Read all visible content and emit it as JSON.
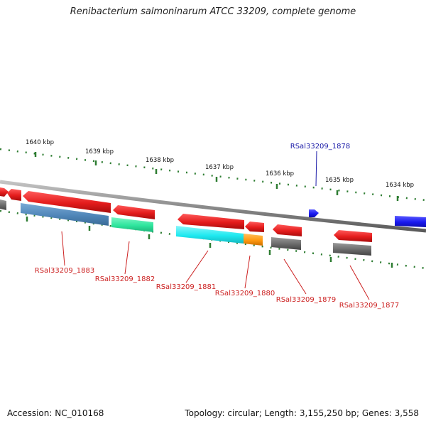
{
  "title": "Renibacterium salmoninarum ATCC 33209, complete genome",
  "footer": {
    "accession": "Accession: NC_010168",
    "summary": "Topology: circular; Length: 3,155,250 bp; Genes: 3,558"
  },
  "colors": {
    "backbone": "#8c8c8c",
    "tick": "#2e7d32",
    "gene_label_red": "#cc2020",
    "gene_label_blue": "#1a1aa8",
    "cds": "#e41c1c",
    "gene_gray": "#6a6a6a",
    "steelblue": "#4f86b8",
    "teal": "#2ee59d",
    "cyan": "#1ee9f0",
    "orange": "#ff9910",
    "blue": "#1a1af0"
  },
  "scale": {
    "unit": "kbp",
    "labels": [
      "1640 kbp",
      "1639 kbp",
      "1638 kbp",
      "1637 kbp",
      "1636 kbp",
      "1635 kbp",
      "1634 kbp"
    ]
  },
  "gene_labels": [
    "RSal33209_1883",
    "RSal33209_1882",
    "RSal33209_1881",
    "RSal33209_1880",
    "RSal33209_1879",
    "RSal33209_1878",
    "RSal33209_1877"
  ],
  "features": [
    {
      "name": "cds",
      "color": "cds",
      "strand": "top",
      "direction": "left"
    },
    {
      "name": "cds",
      "color": "cds",
      "strand": "top",
      "direction": "left"
    },
    {
      "name": "cds",
      "color": "cds",
      "strand": "top",
      "direction": "left"
    },
    {
      "name": "cds",
      "color": "cds",
      "strand": "top",
      "direction": "left"
    },
    {
      "name": "cds",
      "color": "cds",
      "strand": "top",
      "direction": "left"
    },
    {
      "name": "cds",
      "color": "cds",
      "strand": "top",
      "direction": "left"
    },
    {
      "name": "cds",
      "color": "cds",
      "strand": "top",
      "direction": "left"
    },
    {
      "name": "cds",
      "color": "cds",
      "strand": "top",
      "direction": "left"
    },
    {
      "name": "cds",
      "color": "blue",
      "strand": "top",
      "direction": "right"
    },
    {
      "name": "gene",
      "color": "gene_gray",
      "strand": "bottom"
    },
    {
      "name": "gene",
      "color": "steelblue",
      "strand": "bottom"
    },
    {
      "name": "gene",
      "color": "teal",
      "strand": "bottom"
    },
    {
      "name": "gene",
      "color": "cyan",
      "strand": "bottom"
    },
    {
      "name": "gene",
      "color": "orange",
      "strand": "bottom"
    },
    {
      "name": "gene",
      "color": "gene_gray",
      "strand": "bottom"
    },
    {
      "name": "gene",
      "color": "gene_gray",
      "strand": "bottom"
    },
    {
      "name": "gene",
      "color": "blue",
      "strand": "bottom"
    }
  ]
}
